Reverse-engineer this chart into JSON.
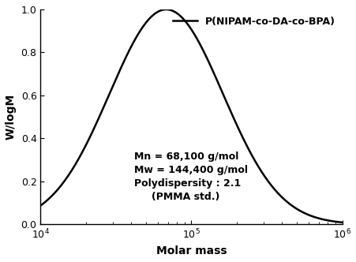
{
  "Mn": 68100,
  "Mw": 144400,
  "PDI": 2.1,
  "xmin": 10000,
  "xmax": 1000000,
  "ymin": 0.0,
  "ymax": 1.0,
  "yticks": [
    0.0,
    0.2,
    0.4,
    0.6,
    0.8,
    1.0
  ],
  "xlabel": "Molar mass",
  "ylabel": "W/logM",
  "legend_label": "P(NIPAM-co-DA-co-BPA)",
  "annotation_lines": [
    "Mn = 68,100 g/mol",
    "Mw = 144,400 g/mol",
    "Polydispersity : 2.1",
    "(PMMA std.)"
  ],
  "line_color": "#000000",
  "line_width": 1.8,
  "background_color": "#ffffff",
  "axis_fontsize": 10,
  "tick_fontsize": 9,
  "legend_fontsize": 9,
  "annotation_fontsize": 9
}
